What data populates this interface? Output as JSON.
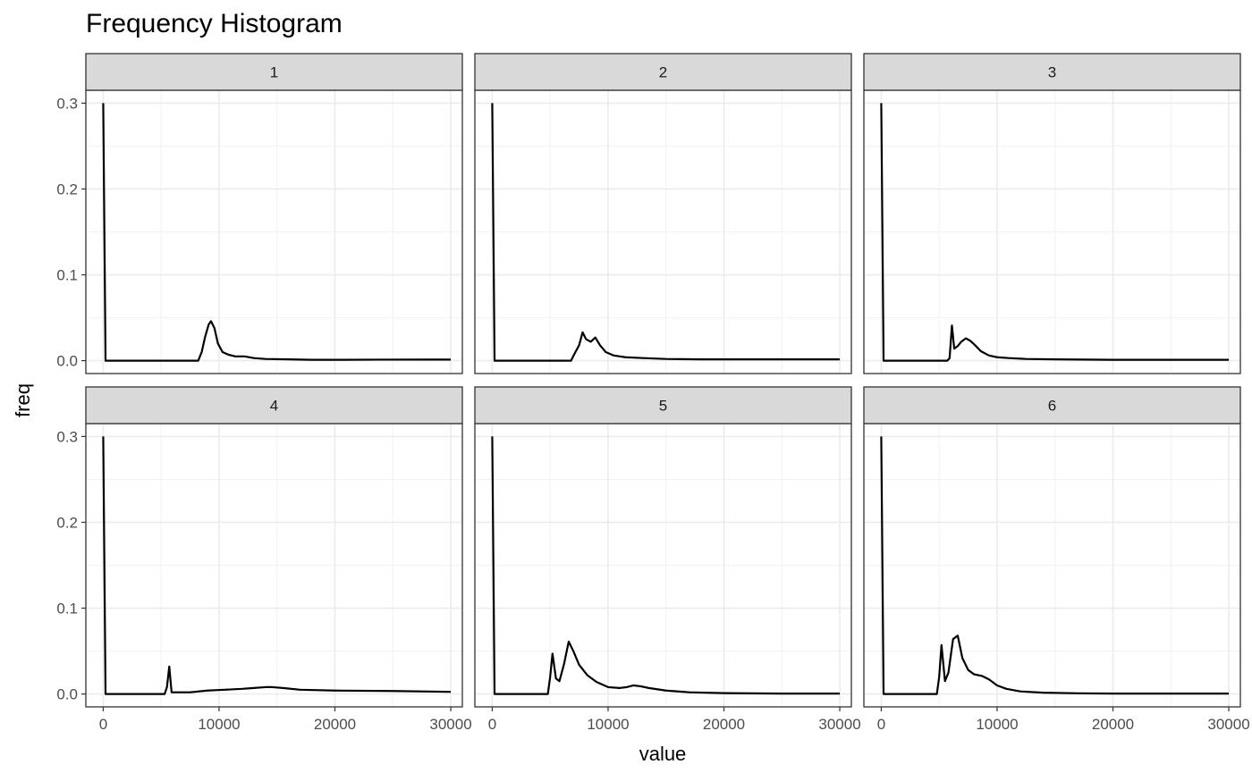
{
  "chart_data": {
    "type": "line",
    "title": "Frequency Histogram",
    "xlabel": "value",
    "ylabel": "freq",
    "xlim": [
      -1500,
      31000
    ],
    "ylim": [
      -0.015,
      0.315
    ],
    "x_ticks": [
      0,
      10000,
      20000,
      30000
    ],
    "y_ticks": [
      0.0,
      0.1,
      0.2,
      0.3
    ],
    "x_tick_labels": [
      "0",
      "10000",
      "20000",
      "30000"
    ],
    "y_tick_labels": [
      "0.0",
      "0.1",
      "0.2",
      "0.3"
    ],
    "grid": true,
    "facets": [
      {
        "label": "1",
        "x": [
          0,
          200,
          8200,
          8500,
          8800,
          9100,
          9300,
          9600,
          9900,
          10300,
          10800,
          11400,
          12200,
          13000,
          14000,
          16000,
          18000,
          20000,
          24000,
          28000,
          30000
        ],
        "y": [
          0.3,
          0.0,
          0.0,
          0.01,
          0.028,
          0.042,
          0.046,
          0.038,
          0.02,
          0.01,
          0.007,
          0.005,
          0.005,
          0.003,
          0.002,
          0.0015,
          0.001,
          0.001,
          0.0012,
          0.0013,
          0.0013
        ]
      },
      {
        "label": "2",
        "x": [
          0,
          200,
          6800,
          7100,
          7500,
          7800,
          8100,
          8500,
          8900,
          9300,
          9800,
          10500,
          11500,
          13000,
          15000,
          18000,
          22000,
          26000,
          30000
        ],
        "y": [
          0.3,
          0.0,
          0.0,
          0.008,
          0.018,
          0.033,
          0.025,
          0.022,
          0.027,
          0.018,
          0.01,
          0.006,
          0.004,
          0.003,
          0.002,
          0.0015,
          0.0015,
          0.0015,
          0.0015
        ]
      },
      {
        "label": "3",
        "x": [
          0,
          200,
          5700,
          5900,
          6100,
          6300,
          6600,
          6900,
          7300,
          7700,
          8100,
          8600,
          9300,
          10000,
          11000,
          12500,
          15000,
          20000,
          25000,
          30000
        ],
        "y": [
          0.3,
          0.0,
          0.0,
          0.003,
          0.041,
          0.014,
          0.017,
          0.022,
          0.026,
          0.023,
          0.018,
          0.011,
          0.006,
          0.004,
          0.003,
          0.002,
          0.0015,
          0.001,
          0.001,
          0.001
        ]
      },
      {
        "label": "4",
        "x": [
          0,
          200,
          5300,
          5500,
          5700,
          5900,
          6500,
          7500,
          9000,
          10500,
          12000,
          13000,
          14000,
          14600,
          15500,
          17000,
          20000,
          25000,
          30000
        ],
        "y": [
          0.3,
          0.0,
          0.0,
          0.008,
          0.032,
          0.002,
          0.002,
          0.002,
          0.004,
          0.005,
          0.006,
          0.007,
          0.008,
          0.008,
          0.007,
          0.005,
          0.004,
          0.0035,
          0.0025
        ]
      },
      {
        "label": "5",
        "x": [
          0,
          200,
          4800,
          5000,
          5200,
          5500,
          5800,
          6200,
          6600,
          7000,
          7500,
          8200,
          9000,
          10000,
          11000,
          11600,
          12200,
          12800,
          13500,
          15000,
          17000,
          20000,
          25000,
          30000
        ],
        "y": [
          0.3,
          0.0,
          0.0,
          0.02,
          0.047,
          0.018,
          0.015,
          0.035,
          0.061,
          0.05,
          0.034,
          0.022,
          0.014,
          0.008,
          0.007,
          0.008,
          0.01,
          0.009,
          0.007,
          0.004,
          0.002,
          0.001,
          0.0005,
          0.0005
        ]
      },
      {
        "label": "6",
        "x": [
          0,
          200,
          4800,
          5000,
          5200,
          5500,
          5800,
          6200,
          6600,
          7000,
          7500,
          8000,
          8700,
          9300,
          10000,
          10800,
          12000,
          14000,
          17000,
          20000,
          25000,
          30000
        ],
        "y": [
          0.3,
          0.0,
          0.0,
          0.02,
          0.057,
          0.015,
          0.025,
          0.064,
          0.068,
          0.042,
          0.028,
          0.023,
          0.021,
          0.017,
          0.01,
          0.006,
          0.003,
          0.0015,
          0.0008,
          0.0005,
          0.0005,
          0.0005
        ]
      }
    ]
  }
}
